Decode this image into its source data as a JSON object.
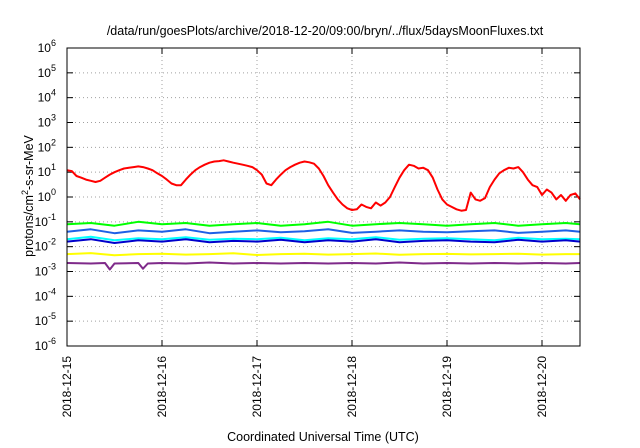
{
  "chart_data": {
    "type": "line",
    "title": "/data/run/goesPlots/archive/2018-12-20/09:00/bryn/../flux/5daysMoonFluxes.txt",
    "xlabel": "Coordinated Universal Time (UTC)",
    "ylabel": "protons/cm²-s-sr-MeV",
    "yscale": "log",
    "ylim": [
      1e-06,
      1000000.0
    ],
    "xlim": [
      0,
      5.4
    ],
    "x_unit": "days since 2018-12-15 00:00 UTC",
    "y_ticks": [
      {
        "base": "10",
        "exp": "-6",
        "value": 1e-06
      },
      {
        "base": "10",
        "exp": "-5",
        "value": 1e-05
      },
      {
        "base": "10",
        "exp": "-4",
        "value": 0.0001
      },
      {
        "base": "10",
        "exp": "-3",
        "value": 0.001
      },
      {
        "base": "10",
        "exp": "-2",
        "value": 0.01
      },
      {
        "base": "10",
        "exp": "-1",
        "value": 0.1
      },
      {
        "base": "10",
        "exp": "0",
        "value": 1
      },
      {
        "base": "10",
        "exp": "1",
        "value": 10
      },
      {
        "base": "10",
        "exp": "2",
        "value": 100
      },
      {
        "base": "10",
        "exp": "3",
        "value": 1000
      },
      {
        "base": "10",
        "exp": "4",
        "value": 10000
      },
      {
        "base": "10",
        "exp": "5",
        "value": 100000
      },
      {
        "base": "10",
        "exp": "6",
        "value": 1000000
      }
    ],
    "x_ticks": [
      {
        "label": "2018-12-15",
        "value": 0
      },
      {
        "label": "2018-12-16",
        "value": 1
      },
      {
        "label": "2018-12-17",
        "value": 2
      },
      {
        "label": "2018-12-18",
        "value": 3
      },
      {
        "label": "2018-12-19",
        "value": 4
      },
      {
        "label": "2018-12-20",
        "value": 5
      }
    ],
    "grid": true,
    "series": [
      {
        "color": "#ff0000",
        "x": [
          0,
          0.05,
          0.1,
          0.15,
          0.2,
          0.25,
          0.3,
          0.35,
          0.4,
          0.45,
          0.5,
          0.55,
          0.6,
          0.65,
          0.7,
          0.75,
          0.8,
          0.85,
          0.9,
          0.95,
          1.0,
          1.05,
          1.1,
          1.15,
          1.2,
          1.25,
          1.3,
          1.35,
          1.4,
          1.45,
          1.5,
          1.55,
          1.6,
          1.65,
          1.7,
          1.75,
          1.8,
          1.85,
          1.9,
          1.95,
          2.0,
          2.05,
          2.1,
          2.15,
          2.2,
          2.25,
          2.3,
          2.35,
          2.4,
          2.45,
          2.5,
          2.55,
          2.6,
          2.65,
          2.7,
          2.75,
          2.8,
          2.85,
          2.9,
          2.95,
          3.0,
          3.05,
          3.1,
          3.15,
          3.2,
          3.25,
          3.3,
          3.35,
          3.4,
          3.45,
          3.5,
          3.55,
          3.6,
          3.65,
          3.7,
          3.75,
          3.8,
          3.85,
          3.9,
          3.95,
          4.0,
          4.05,
          4.1,
          4.15,
          4.2,
          4.25,
          4.3,
          4.35,
          4.4,
          4.45,
          4.5,
          4.55,
          4.6,
          4.65,
          4.7,
          4.75,
          4.8,
          4.85,
          4.9,
          4.95,
          5.0,
          5.05,
          5.1,
          5.15,
          5.2,
          5.25,
          5.3,
          5.35,
          5.4
        ],
        "y": [
          12,
          11,
          7,
          6,
          5,
          4.5,
          4,
          4.5,
          6,
          8,
          10,
          12,
          14,
          15,
          16,
          17,
          16,
          14,
          12,
          9,
          7,
          5,
          3.5,
          3,
          3,
          5,
          8,
          12,
          16,
          20,
          24,
          27,
          28,
          30,
          27,
          24,
          22,
          20,
          18,
          16,
          12,
          8,
          3.5,
          3,
          5,
          8,
          12,
          16,
          20,
          24,
          27,
          25,
          22,
          14,
          7,
          3,
          1.5,
          0.8,
          0.5,
          0.35,
          0.3,
          0.32,
          0.5,
          0.4,
          0.35,
          0.6,
          0.45,
          0.6,
          1,
          2.5,
          6,
          12,
          20,
          18,
          14,
          15,
          12,
          6,
          2,
          0.8,
          0.5,
          0.4,
          0.32,
          0.28,
          0.3,
          1.5,
          0.8,
          0.7,
          0.9,
          2.5,
          5,
          9,
          12,
          15,
          14,
          16,
          10,
          5,
          3,
          2.5,
          1.2,
          2,
          1.5,
          0.8,
          1.2,
          0.7,
          1.2,
          1.4,
          0.8
        ]
      },
      {
        "color": "#00ff00",
        "x": [
          0,
          0.25,
          0.5,
          0.75,
          1.0,
          1.25,
          1.5,
          1.75,
          2.0,
          2.25,
          2.5,
          2.75,
          3.0,
          3.25,
          3.5,
          3.75,
          4.0,
          4.25,
          4.5,
          4.75,
          5.0,
          5.25,
          5.4
        ],
        "y": [
          0.08,
          0.09,
          0.07,
          0.1,
          0.08,
          0.09,
          0.07,
          0.08,
          0.09,
          0.07,
          0.08,
          0.1,
          0.07,
          0.08,
          0.09,
          0.08,
          0.07,
          0.08,
          0.09,
          0.07,
          0.08,
          0.09,
          0.08
        ]
      },
      {
        "color": "#00ffff",
        "x": [
          0,
          0.25,
          0.5,
          0.75,
          1.0,
          1.25,
          1.5,
          1.75,
          2.0,
          2.25,
          2.5,
          2.75,
          3.0,
          3.25,
          3.5,
          3.75,
          4.0,
          4.25,
          4.5,
          4.75,
          5.0,
          5.25,
          5.4
        ],
        "y": [
          0.02,
          0.025,
          0.018,
          0.022,
          0.02,
          0.024,
          0.019,
          0.021,
          0.02,
          0.023,
          0.018,
          0.022,
          0.02,
          0.024,
          0.019,
          0.021,
          0.022,
          0.02,
          0.018,
          0.023,
          0.02,
          0.021,
          0.02
        ]
      },
      {
        "color": "#1e60e6",
        "x": [
          0,
          0.25,
          0.5,
          0.75,
          1.0,
          1.25,
          1.5,
          1.75,
          2.0,
          2.25,
          2.5,
          2.75,
          3.0,
          3.25,
          3.5,
          3.75,
          4.0,
          4.25,
          4.5,
          4.75,
          5.0,
          5.25,
          5.4
        ],
        "y": [
          0.04,
          0.05,
          0.035,
          0.045,
          0.04,
          0.05,
          0.035,
          0.04,
          0.045,
          0.038,
          0.042,
          0.05,
          0.036,
          0.04,
          0.045,
          0.04,
          0.038,
          0.042,
          0.045,
          0.036,
          0.04,
          0.045,
          0.04
        ]
      },
      {
        "color": "#0000cc",
        "x": [
          0,
          0.25,
          0.5,
          0.75,
          1.0,
          1.25,
          1.5,
          1.75,
          2.0,
          2.25,
          2.5,
          2.75,
          3.0,
          3.25,
          3.5,
          3.75,
          4.0,
          4.25,
          4.5,
          4.75,
          5.0,
          5.25,
          5.4
        ],
        "y": [
          0.016,
          0.02,
          0.014,
          0.018,
          0.016,
          0.02,
          0.015,
          0.017,
          0.016,
          0.019,
          0.015,
          0.018,
          0.016,
          0.02,
          0.015,
          0.017,
          0.018,
          0.016,
          0.015,
          0.019,
          0.016,
          0.018,
          0.016
        ]
      },
      {
        "color": "#ffff00",
        "x": [
          0,
          0.25,
          0.5,
          0.75,
          1.0,
          1.25,
          1.5,
          1.75,
          2.0,
          2.25,
          2.5,
          2.75,
          3.0,
          3.25,
          3.5,
          3.75,
          4.0,
          4.25,
          4.5,
          4.75,
          5.0,
          5.25,
          5.4
        ],
        "y": [
          0.005,
          0.0055,
          0.0045,
          0.005,
          0.0052,
          0.0048,
          0.005,
          0.0054,
          0.0046,
          0.005,
          0.0052,
          0.0048,
          0.005,
          0.0053,
          0.0047,
          0.005,
          0.0051,
          0.0049,
          0.005,
          0.0052,
          0.0048,
          0.005,
          0.005
        ]
      },
      {
        "color": "#7f2a8a",
        "x": [
          0,
          0.25,
          0.4,
          0.45,
          0.5,
          0.75,
          0.8,
          0.85,
          1.0,
          1.25,
          1.5,
          1.75,
          2.0,
          2.25,
          2.5,
          2.75,
          3.0,
          3.25,
          3.5,
          3.75,
          4.0,
          4.25,
          4.5,
          4.75,
          5.0,
          5.25,
          5.4
        ],
        "y": [
          0.0022,
          0.0021,
          0.0022,
          0.0012,
          0.0021,
          0.0022,
          0.0013,
          0.0021,
          0.0022,
          0.0021,
          0.0023,
          0.0021,
          0.0022,
          0.0021,
          0.0022,
          0.0021,
          0.0022,
          0.0021,
          0.0023,
          0.0021,
          0.0022,
          0.0021,
          0.0022,
          0.0021,
          0.0022,
          0.0021,
          0.0022
        ]
      }
    ]
  }
}
